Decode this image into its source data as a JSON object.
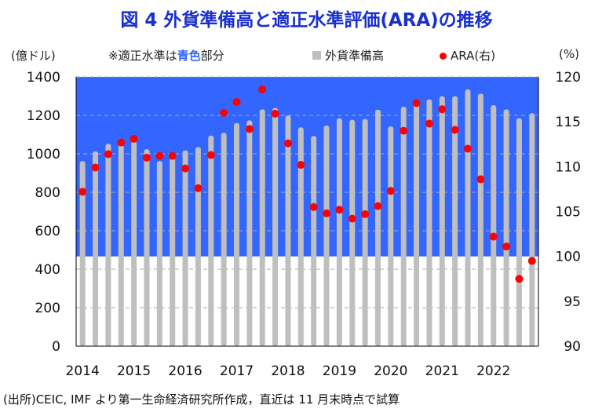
{
  "title": "図 4  外貨準備高と適正水準評価(ARA)の推移",
  "left_unit": "(億ドル)",
  "right_unit": "(%)",
  "note_prefix": "※適正水準は",
  "note_highlight": "青色",
  "note_suffix": "部分",
  "footer": "(出所)CEIC, IMF より第一生命経済研究所作成，直近は 11 月末時点で試算",
  "colors": {
    "band": "#3366ff",
    "bar": "#bfbfbf",
    "dot": "#ff0000",
    "title": "#1a2fd0"
  },
  "chart_data": {
    "type": "bar+scatter",
    "title": "図 4  外貨準備高と適正水準評価(ARA)の推移",
    "x_tick_labels": [
      "2014",
      "2015",
      "2016",
      "2017",
      "2018",
      "2019",
      "2020",
      "2021",
      "2022"
    ],
    "left_axis": {
      "label": "(億ドル)",
      "range": [
        0,
        1400
      ],
      "ticks": [
        0,
        200,
        400,
        600,
        800,
        1000,
        1200,
        1400
      ]
    },
    "right_axis": {
      "label": "(%)",
      "range": [
        90,
        120
      ],
      "ticks": [
        90,
        95,
        100,
        105,
        110,
        115,
        120
      ]
    },
    "adequate_band": {
      "label": "適正水準",
      "range_pct": [
        100,
        120
      ]
    },
    "series": [
      {
        "name": "外貨準備高",
        "axis": "left",
        "type": "bar",
        "values": [
          963,
          1013,
          1052,
          1045,
          1065,
          1024,
          963,
          977,
          1018,
          1035,
          1095,
          1109,
          1160,
          1174,
          1231,
          1239,
          1199,
          1138,
          1093,
          1147,
          1185,
          1177,
          1181,
          1229,
          1143,
          1245,
          1270,
          1283,
          1300,
          1300,
          1335,
          1313,
          1253,
          1231,
          1185,
          1211
        ]
      },
      {
        "name": "ARA(右)",
        "axis": "right",
        "type": "scatter",
        "values": [
          107.2,
          109.9,
          111.4,
          112.7,
          113.1,
          111.0,
          111.2,
          111.2,
          109.8,
          107.6,
          111.3,
          116.0,
          117.2,
          114.2,
          118.6,
          115.9,
          112.6,
          110.2,
          105.5,
          104.8,
          105.2,
          104.2,
          104.7,
          105.6,
          107.3,
          114.0,
          117.1,
          114.8,
          116.4,
          114.1,
          112.0,
          108.6,
          102.2,
          101.1,
          97.5,
          99.5
        ]
      }
    ],
    "legend": "top"
  }
}
